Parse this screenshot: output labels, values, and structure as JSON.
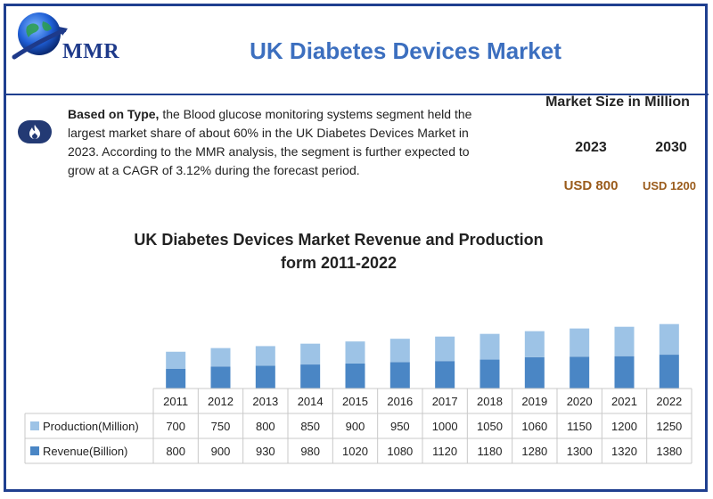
{
  "header": {
    "logo_text": "MMR",
    "title": "UK Diabetes Devices Market"
  },
  "info": {
    "icon": "flame-icon",
    "bold_lead": "Based on Type,",
    "text": " the Blood glucose monitoring systems segment held the largest market share of about 60% in the UK Diabetes Devices Market in 2023. According to the MMR analysis, the segment is further expected to grow at a CAGR of 3.12% during the forecast period."
  },
  "market_size": {
    "title": "Market Size in Million",
    "year_1": "2023",
    "year_2": "2030",
    "value_1": "USD 800",
    "value_2": "USD 1200"
  },
  "colors": {
    "brand_blue": "#1f3f8f",
    "title_blue": "#3c6fbf",
    "production": "#9dc3e6",
    "revenue": "#4a86c5",
    "usd_text": "#9a5b1b"
  },
  "chart_data": {
    "type": "bar",
    "stacked": true,
    "title_line_1": "UK Diabetes Devices Market Revenue and Production",
    "title_line_2": "form 2011-2022",
    "categories": [
      "2011",
      "2012",
      "2013",
      "2014",
      "2015",
      "2016",
      "2017",
      "2018",
      "2019",
      "2020",
      "2021",
      "2022"
    ],
    "series": [
      {
        "name": "Production(Million)",
        "values": [
          700,
          750,
          800,
          850,
          900,
          950,
          1000,
          1050,
          1060,
          1150,
          1200,
          1250
        ]
      },
      {
        "name": "Revenue(Billion)",
        "values": [
          800,
          900,
          930,
          980,
          1020,
          1080,
          1120,
          1180,
          1280,
          1300,
          1320,
          1380
        ]
      }
    ],
    "data_table": true,
    "grid": false
  }
}
